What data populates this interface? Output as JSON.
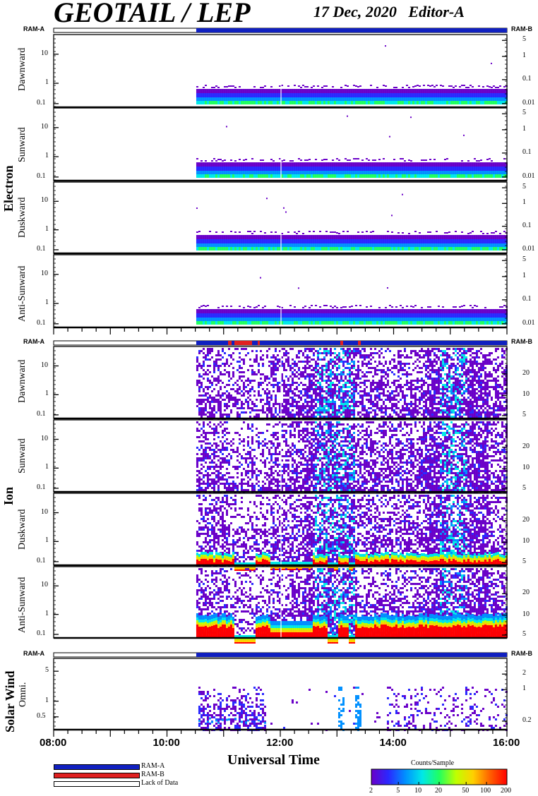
{
  "header": {
    "title": "GEOTAIL / LEP",
    "date": "17 Dec, 2020",
    "editor": "Editor-A"
  },
  "ram_labels": {
    "left": "RAM-A",
    "right": "RAM-B"
  },
  "groups": [
    "Electron",
    "Ion",
    "Solar Wind"
  ],
  "panels": [
    {
      "group": "Electron",
      "label": "Dawnward",
      "left_ticks": [
        "10",
        "1",
        "0.1"
      ],
      "right_ticks": [
        "5",
        "1",
        "0.1",
        "0.01"
      ]
    },
    {
      "group": "Electron",
      "label": "Sunward",
      "left_ticks": [
        "10",
        "1",
        "0.1"
      ],
      "right_ticks": [
        "5",
        "1",
        "0.1",
        "0.01"
      ]
    },
    {
      "group": "Electron",
      "label": "Duskward",
      "left_ticks": [
        "10",
        "1",
        "0.1"
      ],
      "right_ticks": [
        "5",
        "1",
        "0.1",
        "0.01"
      ]
    },
    {
      "group": "Electron",
      "label": "Anti-Sunward",
      "left_ticks": [
        "10",
        "1",
        "0.1"
      ],
      "right_ticks": [
        "5",
        "1",
        "0.1",
        "0.01"
      ]
    },
    {
      "group": "Ion",
      "label": "Dawnward",
      "left_ticks": [
        "10",
        "1",
        "0.1"
      ],
      "right_ticks": [
        "20",
        "10",
        "5"
      ]
    },
    {
      "group": "Ion",
      "label": "Sunward",
      "left_ticks": [
        "10",
        "1",
        "0.1"
      ],
      "right_ticks": [
        "20",
        "10",
        "5"
      ]
    },
    {
      "group": "Ion",
      "label": "Duskward",
      "left_ticks": [
        "10",
        "1",
        "0.1"
      ],
      "right_ticks": [
        "20",
        "10",
        "5"
      ]
    },
    {
      "group": "Ion",
      "label": "Anti-Sunward",
      "left_ticks": [
        "10",
        "1",
        "0.1"
      ],
      "right_ticks": [
        "20",
        "10",
        "5"
      ]
    },
    {
      "group": "Solar Wind",
      "label": "Omni.",
      "left_ticks": [
        "5",
        "1",
        "0.5"
      ],
      "right_ticks": [
        "2",
        "1",
        "0.2"
      ]
    }
  ],
  "chart_data": {
    "type": "heatmap",
    "xlabel": "Universal Time",
    "x_ticks": [
      "08:00",
      "10:00",
      "12:00",
      "14:00",
      "16:00"
    ],
    "x_range": [
      "08:00",
      "16:00"
    ],
    "data_start": "10:31",
    "colorbar": {
      "title": "Counts/Sample",
      "ticks": [
        "2",
        "5",
        "10",
        "20",
        "50",
        "100",
        "200"
      ],
      "colors": [
        "#6a00c8",
        "#2a28ff",
        "#0090ff",
        "#00e8e8",
        "#20ff60",
        "#c0ff00",
        "#ffd000",
        "#ff6000",
        "#ff0000"
      ]
    },
    "legend": [
      {
        "label": "RAM-A",
        "color": "#1020c0"
      },
      {
        "label": "RAM-B",
        "color": "#e02020"
      },
      {
        "label": "Lack of Data",
        "color": "#ffffff"
      }
    ]
  }
}
